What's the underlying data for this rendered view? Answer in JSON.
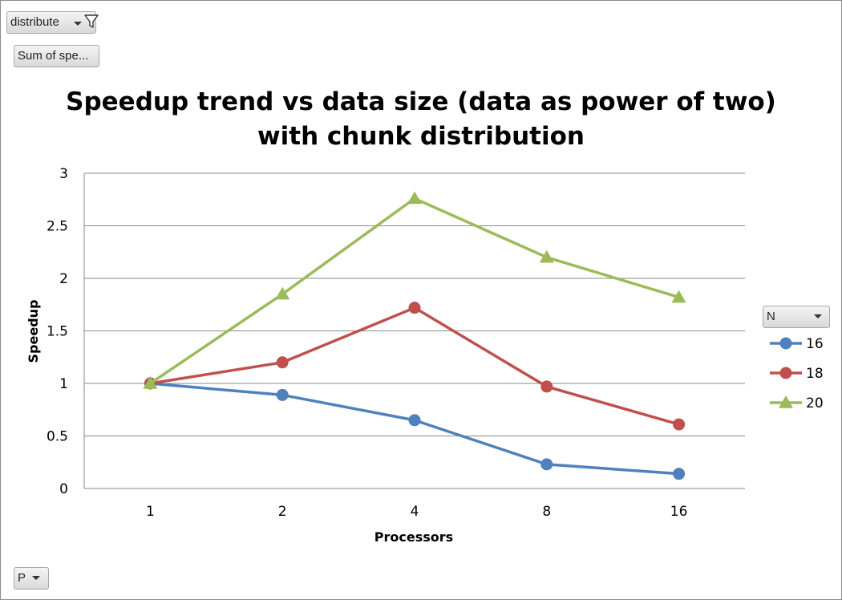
{
  "pivot_fields": {
    "filter_label": "distribute",
    "values_label": "Sum of spe...",
    "series_field_label": "N",
    "axis_field_label": "P"
  },
  "icons": {
    "filter": "filter-icon",
    "dropdown": "chevron-down-icon"
  },
  "chart_data": {
    "type": "line",
    "title_line1": "Speedup trend vs data size (data as power of two)",
    "title_line2": "with chunk distribution",
    "xlabel": "Processors",
    "ylabel": "Speedup",
    "categories": [
      "1",
      "2",
      "4",
      "8",
      "16"
    ],
    "yticks": [
      "0",
      "0.5",
      "1",
      "1.5",
      "2",
      "2.5",
      "3"
    ],
    "ylim": [
      0,
      3
    ],
    "grid": true,
    "legend_position": "right",
    "series": [
      {
        "name": "16",
        "values": [
          1.0,
          0.89,
          0.65,
          0.23,
          0.14
        ],
        "color": "#4f81bd",
        "marker": "circle"
      },
      {
        "name": "18",
        "values": [
          1.0,
          1.2,
          1.72,
          0.97,
          0.61
        ],
        "color": "#c0504d",
        "marker": "circle"
      },
      {
        "name": "20",
        "values": [
          1.0,
          1.85,
          2.76,
          2.2,
          1.82
        ],
        "color": "#9bbb59",
        "marker": "triangle"
      }
    ]
  }
}
